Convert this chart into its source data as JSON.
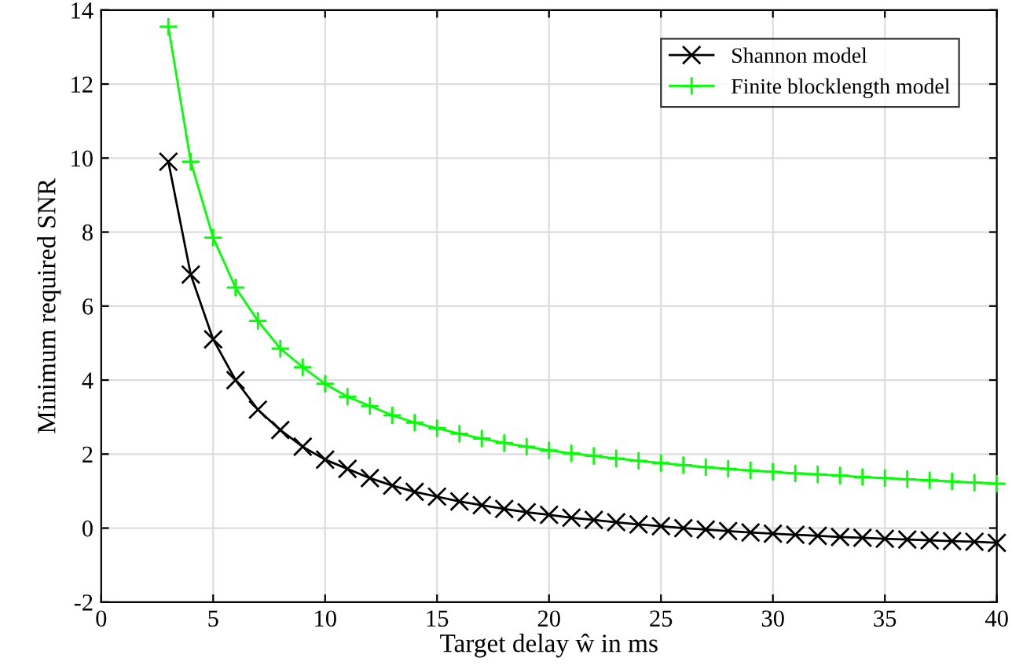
{
  "chart_data": {
    "type": "line",
    "xlabel": "Target delay ŵ in ms",
    "ylabel": "Minimum required SNR",
    "xlim": [
      0,
      40
    ],
    "ylim": [
      -2,
      14
    ],
    "xticks": [
      0,
      5,
      10,
      15,
      20,
      25,
      30,
      35,
      40
    ],
    "yticks": [
      -2,
      0,
      2,
      4,
      6,
      8,
      10,
      12,
      14
    ],
    "grid": true,
    "legend": "top right",
    "line_style": "solid",
    "series": [
      {
        "name": "Shannon model",
        "color": "#000000",
        "marker": "x",
        "x": [
          3,
          4,
          5,
          6,
          7,
          8,
          9,
          10,
          11,
          12,
          13,
          14,
          15,
          16,
          17,
          18,
          19,
          20,
          21,
          22,
          23,
          24,
          25,
          26,
          27,
          28,
          29,
          30,
          31,
          32,
          33,
          34,
          35,
          36,
          37,
          38,
          39,
          40
        ],
        "values": [
          9.9,
          6.85,
          5.1,
          4.0,
          3.2,
          2.65,
          2.2,
          1.85,
          1.6,
          1.35,
          1.15,
          0.98,
          0.85,
          0.72,
          0.62,
          0.52,
          0.43,
          0.36,
          0.28,
          0.22,
          0.16,
          0.1,
          0.05,
          0.0,
          -0.04,
          -0.08,
          -0.12,
          -0.15,
          -0.18,
          -0.21,
          -0.24,
          -0.26,
          -0.29,
          -0.31,
          -0.33,
          -0.35,
          -0.37,
          -0.4
        ]
      },
      {
        "name": "Finite blocklength model",
        "color": "#00ff00",
        "marker": "cross",
        "x": [
          3,
          4,
          5,
          6,
          7,
          8,
          9,
          10,
          11,
          12,
          13,
          14,
          15,
          16,
          17,
          18,
          19,
          20,
          21,
          22,
          23,
          24,
          25,
          26,
          27,
          28,
          29,
          30,
          31,
          32,
          33,
          34,
          35,
          36,
          37,
          38,
          39,
          40
        ],
        "values": [
          13.55,
          9.9,
          7.85,
          6.5,
          5.6,
          4.85,
          4.35,
          3.9,
          3.55,
          3.3,
          3.05,
          2.85,
          2.7,
          2.55,
          2.42,
          2.3,
          2.2,
          2.1,
          2.02,
          1.95,
          1.88,
          1.82,
          1.76,
          1.7,
          1.65,
          1.6,
          1.56,
          1.52,
          1.48,
          1.45,
          1.42,
          1.38,
          1.35,
          1.32,
          1.29,
          1.26,
          1.23,
          1.2
        ]
      }
    ]
  }
}
